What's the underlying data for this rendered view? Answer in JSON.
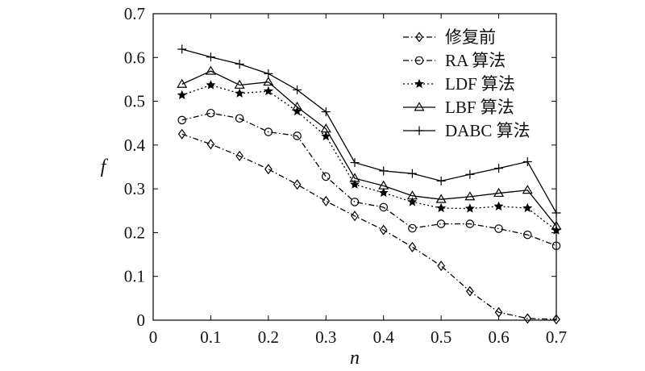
{
  "chart_data": {
    "type": "line",
    "xlabel": "n",
    "ylabel": "f",
    "xlim": [
      0,
      0.7
    ],
    "ylim": [
      0,
      0.7
    ],
    "xticks": [
      "0",
      "0.1",
      "0.2",
      "0.3",
      "0.4",
      "0.5",
      "0.6",
      "0.7"
    ],
    "yticks": [
      "0",
      "0.1",
      "0.2",
      "0.3",
      "0.4",
      "0.5",
      "0.6",
      "0.7"
    ],
    "grid": false,
    "legend_position": "top-right",
    "x": [
      0.05,
      0.1,
      0.15,
      0.2,
      0.25,
      0.3,
      0.35,
      0.4,
      0.45,
      0.5,
      0.55,
      0.6,
      0.65,
      0.7
    ],
    "series": [
      {
        "name": "修复前",
        "marker": "diamond",
        "line_style": "dash-dot",
        "values": [
          0.425,
          0.402,
          0.375,
          0.345,
          0.31,
          0.272,
          0.238,
          0.206,
          0.167,
          0.124,
          0.066,
          0.018,
          0.004,
          0.002
        ]
      },
      {
        "name": "RA 算法",
        "marker": "circle",
        "line_style": "dash-dot",
        "values": [
          0.457,
          0.473,
          0.461,
          0.43,
          0.421,
          0.328,
          0.27,
          0.258,
          0.21,
          0.22,
          0.22,
          0.209,
          0.195,
          0.17
        ]
      },
      {
        "name": "LDF 算法",
        "marker": "star",
        "line_style": "dotted",
        "values": [
          0.514,
          0.537,
          0.518,
          0.523,
          0.477,
          0.42,
          0.31,
          0.291,
          0.27,
          0.256,
          0.255,
          0.26,
          0.256,
          0.205
        ]
      },
      {
        "name": "LBF 算法",
        "marker": "triangle",
        "line_style": "solid",
        "values": [
          0.539,
          0.569,
          0.537,
          0.544,
          0.487,
          0.437,
          0.324,
          0.307,
          0.284,
          0.276,
          0.282,
          0.29,
          0.297,
          0.215
        ]
      },
      {
        "name": "DABC 算法",
        "marker": "plus",
        "line_style": "solid",
        "values": [
          0.619,
          0.601,
          0.585,
          0.563,
          0.526,
          0.476,
          0.36,
          0.341,
          0.335,
          0.318,
          0.333,
          0.347,
          0.362,
          0.245
        ]
      }
    ]
  }
}
